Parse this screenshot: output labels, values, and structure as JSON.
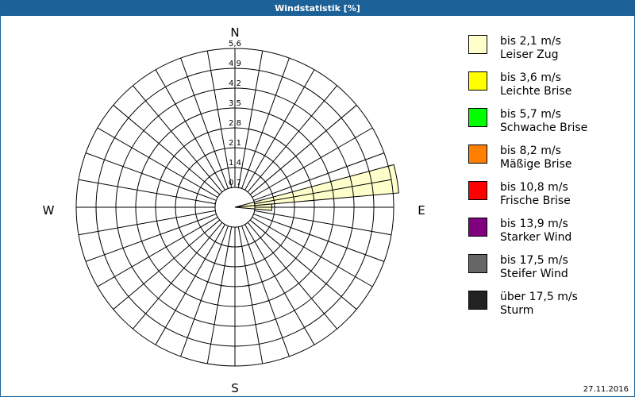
{
  "window": {
    "title": "Windstatistik [%]",
    "date": "27.11.2016"
  },
  "chart_data": {
    "type": "polar-bar",
    "title": "Windstatistik [%]",
    "directions": {
      "N": "N",
      "E": "E",
      "S": "S",
      "W": "W"
    },
    "rlim": [
      0,
      5.6
    ],
    "ring_ticks": [
      "0,7",
      "1,4",
      "2,1",
      "2,8",
      "3,5",
      "4,2",
      "4,9",
      "5,6"
    ],
    "ring_values": [
      0.7,
      1.4,
      2.1,
      2.8,
      3.5,
      4.2,
      4.9,
      5.6
    ],
    "sector_width_deg": 10,
    "grid": true,
    "legend_position": "right",
    "series": [
      {
        "name": "bis 2,1 m/s Leiser Zug",
        "color": "#ffffcc",
        "values": [
          {
            "direction_deg": 80,
            "value": 5.8
          },
          {
            "direction_deg": 90,
            "value": 1.3
          }
        ]
      }
    ]
  },
  "legend": [
    {
      "line1": "bis 2,1 m/s",
      "line2": "Leiser Zug",
      "color": "#ffffcc"
    },
    {
      "line1": "bis 3,6 m/s",
      "line2": "Leichte Brise",
      "color": "#ffff00"
    },
    {
      "line1": "bis 5,7 m/s",
      "line2": "Schwache Brise",
      "color": "#00ff00"
    },
    {
      "line1": "bis 8,2 m/s",
      "line2": "Mäßige Brise",
      "color": "#ff8000"
    },
    {
      "line1": "bis 10,8 m/s",
      "line2": "Frische Brise",
      "color": "#ff0000"
    },
    {
      "line1": "bis 13,9 m/s",
      "line2": "Starker Wind",
      "color": "#800080"
    },
    {
      "line1": "bis 17,5 m/s",
      "line2": "Steifer Wind",
      "color": "#666666"
    },
    {
      "line1": "über 17,5 m/s",
      "line2": "Sturm",
      "color": "#222222"
    }
  ]
}
